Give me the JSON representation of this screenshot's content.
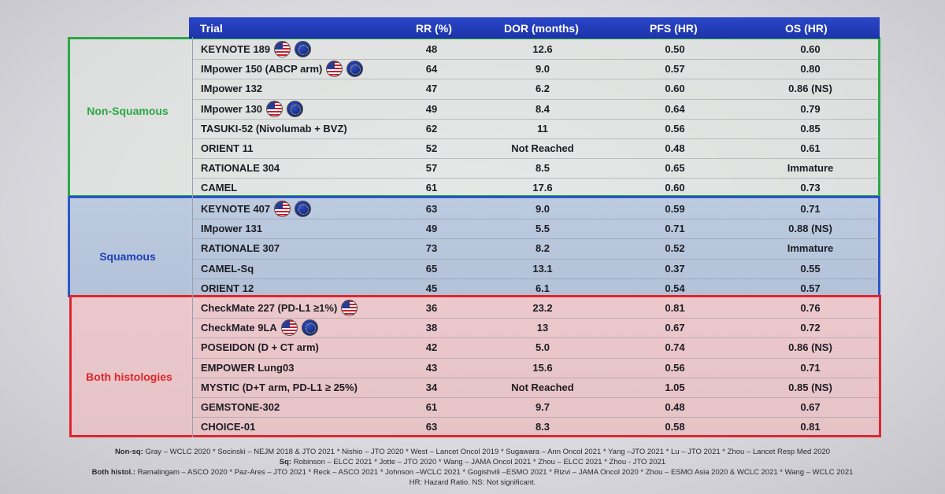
{
  "header": {
    "trial": "Trial",
    "rr": "RR (%)",
    "dor": "DOR (months)",
    "pfs": "PFS (HR)",
    "os": "OS (HR)"
  },
  "groups": [
    {
      "label": "Non-Squamous",
      "color": "#2aa845",
      "rows": [
        {
          "trial": "KEYNOTE 189",
          "flags": [
            "us-flag",
            "eu-flag"
          ],
          "rr": "48",
          "dor": "12.6",
          "pfs": "0.50",
          "os": "0.60"
        },
        {
          "trial": "IMpower 150 (ABCP arm)",
          "flags": [
            "us-flag",
            "eu-flag"
          ],
          "rr": "64",
          "dor": "9.0",
          "pfs": "0.57",
          "os": "0.80"
        },
        {
          "trial": "IMpower 132",
          "flags": [],
          "rr": "47",
          "dor": "6.2",
          "pfs": "0.60",
          "os": "0.86 (NS)"
        },
        {
          "trial": "IMpower 130",
          "flags": [
            "us-flag",
            "eu-flag"
          ],
          "rr": "49",
          "dor": "8.4",
          "pfs": "0.64",
          "os": "0.79"
        },
        {
          "trial": "TASUKI-52 (Nivolumab + BVZ)",
          "flags": [],
          "rr": "62",
          "dor": "11",
          "pfs": "0.56",
          "os": "0.85"
        },
        {
          "trial": "ORIENT 11",
          "flags": [],
          "rr": "52",
          "dor": "Not Reached",
          "pfs": "0.48",
          "os": "0.61"
        },
        {
          "trial": "RATIONALE 304",
          "flags": [],
          "rr": "57",
          "dor": "8.5",
          "pfs": "0.65",
          "os": "Immature"
        },
        {
          "trial": "CAMEL",
          "flags": [],
          "rr": "61",
          "dor": "17.6",
          "pfs": "0.60",
          "os": "0.73"
        }
      ]
    },
    {
      "label": "Squamous",
      "color": "#1f3fb8",
      "rows": [
        {
          "trial": "KEYNOTE 407",
          "flags": [
            "us-flag",
            "eu-flag"
          ],
          "rr": "63",
          "dor": "9.0",
          "pfs": "0.59",
          "os": "0.71"
        },
        {
          "trial": "IMpower 131",
          "flags": [],
          "rr": "49",
          "dor": "5.5",
          "pfs": "0.71",
          "os": "0.88 (NS)"
        },
        {
          "trial": "RATIONALE 307",
          "flags": [],
          "rr": "73",
          "dor": "8.2",
          "pfs": "0.52",
          "os": "Immature"
        },
        {
          "trial": "CAMEL-Sq",
          "flags": [],
          "rr": "65",
          "dor": "13.1",
          "pfs": "0.37",
          "os": "0.55"
        },
        {
          "trial": "ORIENT 12",
          "flags": [],
          "rr": "45",
          "dor": "6.1",
          "pfs": "0.54",
          "os": "0.57"
        }
      ]
    },
    {
      "label": "Both histologies",
      "color": "#e0262c",
      "rows": [
        {
          "trial": "CheckMate 227 (PD-L1 ≥1%)",
          "flags": [
            "us-flag"
          ],
          "rr": "36",
          "dor": "23.2",
          "pfs": "0.81",
          "os": "0.76"
        },
        {
          "trial": "CheckMate 9LA",
          "flags": [
            "us-flag",
            "eu-flag"
          ],
          "rr": "38",
          "dor": "13",
          "pfs": "0.67",
          "os": "0.72"
        },
        {
          "trial": "POSEIDON (D + CT arm)",
          "flags": [],
          "rr": "42",
          "dor": "5.0",
          "pfs": "0.74",
          "os": "0.86 (NS)"
        },
        {
          "trial": "EMPOWER Lung03",
          "flags": [],
          "rr": "43",
          "dor": "15.6",
          "pfs": "0.56",
          "os": "0.71"
        },
        {
          "trial": "MYSTIC (D+T arm, PD-L1 ≥ 25%)",
          "flags": [],
          "rr": "34",
          "dor": "Not Reached",
          "pfs": "1.05",
          "os": "0.85 (NS)"
        },
        {
          "trial": "GEMSTONE-302",
          "flags": [],
          "rr": "61",
          "dor": "9.7",
          "pfs": "0.48",
          "os": "0.67"
        },
        {
          "trial": "CHOICE-01",
          "flags": [],
          "rr": "63",
          "dor": "8.3",
          "pfs": "0.58",
          "os": "0.81"
        }
      ]
    }
  ],
  "footer": {
    "nonsq_label": "Non-sq:",
    "nonsq_text": " Gray – WCLC 2020 * Socinski – NEJM 2018 & JTO 2021 * Nishio – JTO 2020 * West – Lancet Oncol 2019 * Sugawara – Ann Oncol 2021 * Yang –JTO 2021 * Lu – JTO 2021 * Zhou – Lancet Resp Med 2020",
    "sq_label": "Sq:",
    "sq_text": " Robinson – ELCC 2021 * Jotte – JTO 2020 * Wang – JAMA Oncol 2021 * Zhou – ELCC 2021 * Zhou - JTO 2021",
    "both_label": "Both histol.:",
    "both_text": " Ramalingam – ASCO 2020 * Paz-Ares – JTO  2021 * Reck – ASCO 2021 * Johnson –WCLC 2021 * Gogishvili –ESMO 2021 *  Rizvi – JAMA Oncol 2020 * Zhou – ESMO Asia 2020 & WCLC 2021 * Wang – WCLC 2021",
    "hr_note": "HR: Hazard Ratio. NS: Not significant."
  }
}
